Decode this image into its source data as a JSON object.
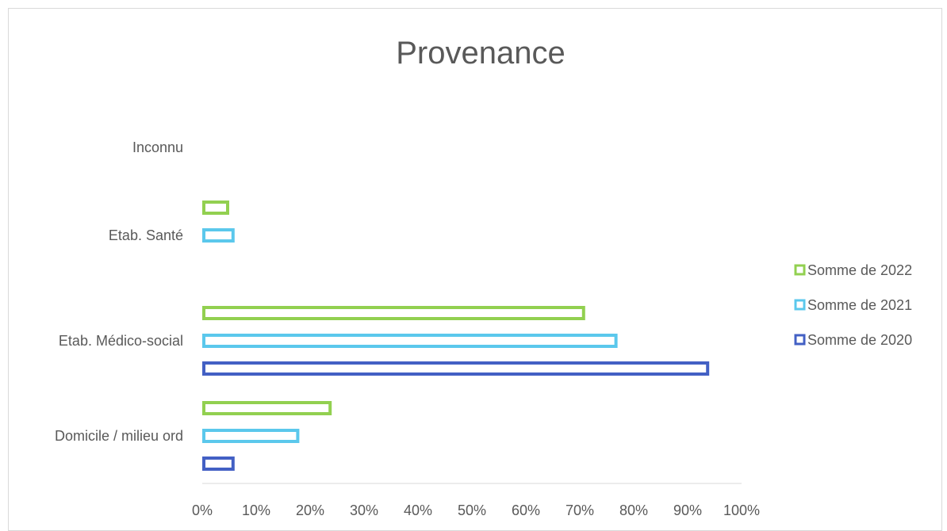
{
  "chart_data": {
    "type": "bar",
    "orientation": "horizontal",
    "title": "Provenance",
    "categories": [
      "Inconnu",
      "Etab. Santé",
      "Etab. Médico-social",
      "Domicile / milieu ord"
    ],
    "series": [
      {
        "name": "Somme de 2022",
        "color": "#92d050",
        "values": [
          0,
          5,
          71,
          24
        ]
      },
      {
        "name": "Somme de 2021",
        "color": "#5bc8ec",
        "values": [
          0,
          6,
          77,
          18
        ]
      },
      {
        "name": "Somme de 2020",
        "color": "#4360c4",
        "values": [
          0,
          0,
          94,
          6
        ]
      }
    ],
    "xlim": [
      0,
      100
    ],
    "x_ticks": [
      "0%",
      "10%",
      "20%",
      "30%",
      "40%",
      "50%",
      "60%",
      "70%",
      "80%",
      "90%",
      "100%"
    ],
    "grid": false,
    "legend_position": "right",
    "bar_style": "outline"
  }
}
